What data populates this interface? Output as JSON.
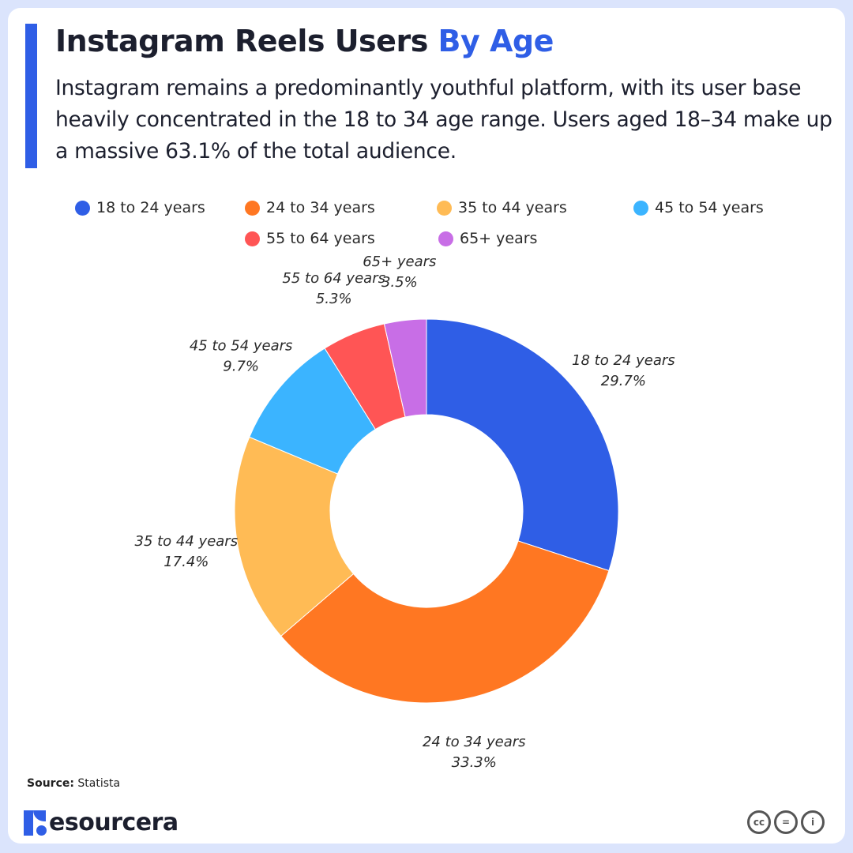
{
  "header": {
    "title_main": "Instagram Reels Users",
    "title_accent": "By Age",
    "subtitle": "Instagram remains a predominantly youthful platform, with its user base heavily concentrated in the 18 to 34 age range. Users aged 18–34 make up a massive 63.1% of the total audience."
  },
  "colors": {
    "accent": "#2f5ee6",
    "background": "#dbe4fc"
  },
  "chart_data": {
    "type": "pie",
    "variant": "donut",
    "title": "",
    "legend_placement": "top",
    "categories": [
      "18 to 24 years",
      "24 to 34 years",
      "35 to 44 years",
      "45 to 54 years",
      "55 to 64 years",
      "65+ years"
    ],
    "values": [
      29.7,
      33.3,
      17.4,
      9.7,
      5.3,
      3.5
    ],
    "value_labels": [
      "29.7%",
      "33.3%",
      "17.4%",
      "9.7%",
      "5.3%",
      "3.5%"
    ],
    "colors": [
      "#2f5ee6",
      "#ff7722",
      "#ffbb55",
      "#3bb4ff",
      "#ff5555",
      "#c86ee6"
    ]
  },
  "footer": {
    "source_label": "Source:",
    "source_value": "Statista",
    "brand": "esourcera",
    "license_icons": [
      "cc-icon",
      "nd-icon",
      "by-icon"
    ],
    "cc_text": "cc",
    "nd_text": "=",
    "by_text": "i"
  }
}
